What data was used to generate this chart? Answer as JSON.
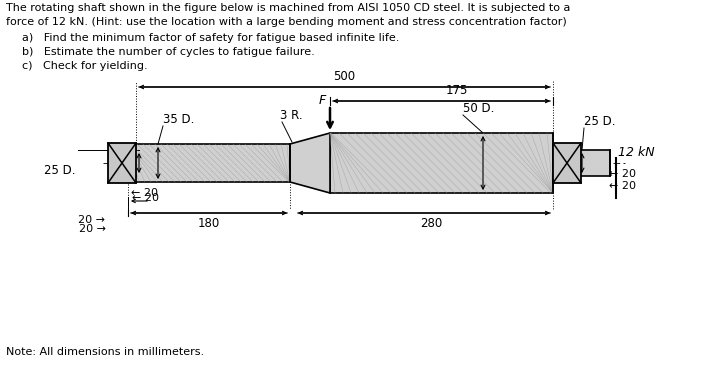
{
  "title_line1": "The rotating shaft shown in the figure below is machined from AISI 1050 CD steel. It is subjected to a",
  "title_line2": "force of 12 kN. (Hint: use the location with a large bending moment and stress concentration factor)",
  "item_a": "a)   Find the minimum factor of safety for fatigue based infinite life.",
  "item_b": "b)   Estimate the number of cycles to fatigue failure.",
  "item_c": "c)   Check for yielding.",
  "note": "Note: All dimensions in millimeters.",
  "bg_color": "#ffffff",
  "shaft_fill": "#d0d0d0",
  "bearing_fill": "#c8c8c8",
  "lc": "#000000"
}
